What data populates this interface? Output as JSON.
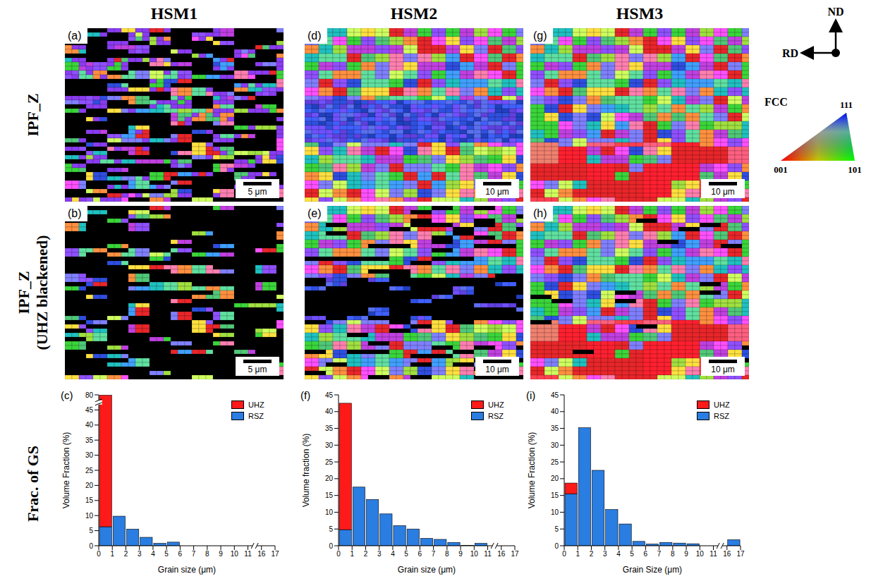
{
  "figure": {
    "columns": [
      "HSM1",
      "HSM2",
      "HSM3"
    ],
    "row_labels": [
      [
        "IPF_Z"
      ],
      [
        "IPF_Z",
        "(UHZ blackened)"
      ],
      [
        "Frac. of GS"
      ]
    ],
    "maps": [
      [
        {
          "panel": "(a)",
          "scale_bar": "5 μm"
        },
        {
          "panel": "(b)",
          "scale_bar": "5 μm"
        }
      ],
      [
        {
          "panel": "(d)",
          "scale_bar": "10 μm"
        },
        {
          "panel": "(e)",
          "scale_bar": "10 μm"
        }
      ],
      [
        {
          "panel": "(g)",
          "scale_bar": "10 μm"
        },
        {
          "panel": "(h)",
          "scale_bar": "10 μm"
        }
      ]
    ],
    "sample_axes": {
      "vertical": "ND",
      "horizontal": "RD"
    },
    "ipf_key": {
      "lattice": "FCC",
      "corners": {
        "top": "111",
        "left": "001",
        "right": "101"
      }
    }
  },
  "chart_data": [
    {
      "type": "histogram",
      "panel": "(c)",
      "x_label": "Grain size (μm)",
      "y_label": "Volume Fraction (%)",
      "bins": [
        0,
        1,
        2,
        3,
        4,
        5,
        6,
        7,
        8,
        9,
        10,
        11,
        16,
        17
      ],
      "stacked": true,
      "legend": "top right",
      "grid": false,
      "series": [
        {
          "name": "RSZ",
          "color": "#2a7de1",
          "values": [
            6.3,
            9.8,
            5.5,
            2.8,
            0.8,
            1.2,
            0,
            0,
            0,
            0,
            0,
            0,
            0
          ]
        },
        {
          "name": "UHZ",
          "color": "#ff1a1a",
          "values": [
            72.9,
            0,
            0,
            0,
            0,
            0,
            0,
            0,
            0,
            0,
            0,
            0,
            0
          ]
        }
      ],
      "xlim": [
        0,
        17
      ],
      "xticks": [
        0,
        1,
        2,
        3,
        4,
        5,
        6,
        7,
        8,
        9,
        10,
        11,
        16,
        17
      ],
      "ylim": [
        0,
        80
      ],
      "yticks": [
        0,
        5,
        10,
        15,
        20,
        25,
        30,
        35,
        40,
        45,
        80
      ]
    },
    {
      "type": "histogram",
      "panel": "(f)",
      "x_label": "Grain size (μm)",
      "y_label": "Volume fraction (%)",
      "bins": [
        0,
        1,
        2,
        3,
        4,
        5,
        6,
        7,
        8,
        9,
        10,
        11,
        16,
        17
      ],
      "stacked": true,
      "legend": "top right",
      "grid": false,
      "series": [
        {
          "name": "RSZ",
          "color": "#2a7de1",
          "values": [
            4.8,
            17.5,
            13.8,
            9.5,
            6,
            5,
            2.2,
            1.9,
            1,
            0.1,
            0.7,
            0,
            0
          ]
        },
        {
          "name": "UHZ",
          "color": "#ff1a1a",
          "values": [
            37.7,
            0,
            0,
            0,
            0,
            0,
            0,
            0,
            0,
            0,
            0,
            0,
            0
          ]
        }
      ],
      "xlim": [
        0,
        17
      ],
      "xticks": [
        0,
        1,
        2,
        3,
        4,
        5,
        6,
        7,
        8,
        9,
        10,
        11,
        16,
        17
      ],
      "ylim": [
        0,
        45
      ],
      "yticks": [
        0,
        5,
        10,
        15,
        20,
        25,
        30,
        35,
        40,
        45
      ]
    },
    {
      "type": "histogram",
      "panel": "(i)",
      "x_label": "Grain Size (μm)",
      "y_label": "Volume Fraction (%)",
      "bins": [
        0,
        1,
        2,
        3,
        4,
        5,
        6,
        7,
        8,
        9,
        10,
        11,
        16,
        17
      ],
      "stacked": true,
      "legend": "top right",
      "grid": false,
      "series": [
        {
          "name": "RSZ",
          "color": "#2a7de1",
          "values": [
            15.5,
            35.2,
            22.5,
            10.8,
            6.5,
            1.3,
            0.5,
            1,
            0.8,
            0.6,
            0,
            0,
            1.8
          ]
        },
        {
          "name": "UHZ",
          "color": "#ff1a1a",
          "values": [
            3.2,
            0,
            0,
            0,
            0,
            0,
            0,
            0,
            0,
            0,
            0,
            0,
            0
          ]
        }
      ],
      "xlim": [
        0,
        17
      ],
      "xticks": [
        0,
        1,
        2,
        3,
        4,
        5,
        6,
        7,
        8,
        9,
        10,
        11,
        16,
        17
      ],
      "ylim": [
        0,
        45
      ],
      "yticks": [
        0,
        5,
        10,
        15,
        20,
        25,
        30,
        35,
        40,
        45
      ]
    }
  ]
}
